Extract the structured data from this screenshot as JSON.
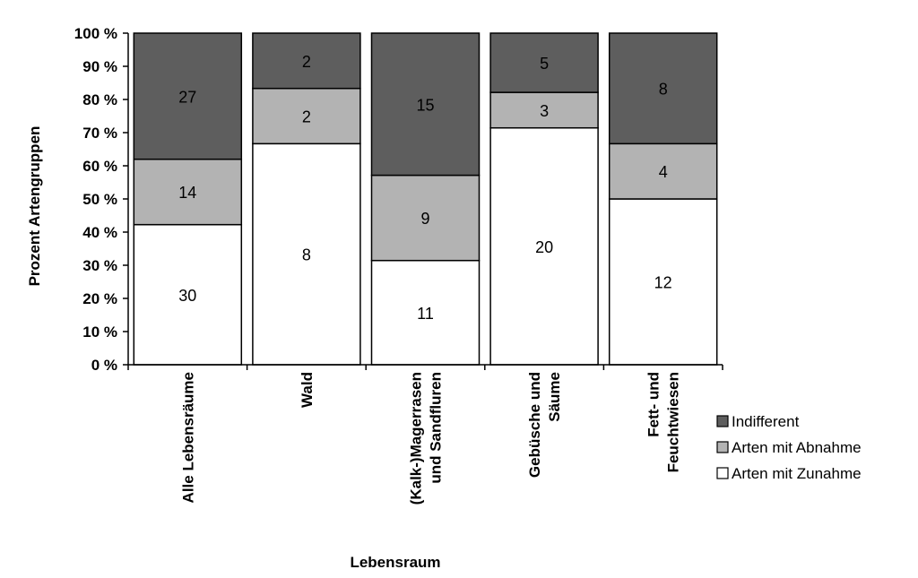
{
  "chart_data": {
    "type": "bar",
    "stacked": "percent",
    "xlabel": "Lebensraum",
    "ylabel": "Prozent Artengruppen",
    "ylim": [
      0,
      100
    ],
    "yticks": [
      "0 %",
      "10 %",
      "20 %",
      "30 %",
      "40 %",
      "50 %",
      "60 %",
      "70 %",
      "80 %",
      "90 %",
      "100 %"
    ],
    "categories": [
      [
        "Alle Lebensräume"
      ],
      [
        "Wald"
      ],
      [
        "(Kalk-)Magerrasen",
        "und Sandfluren"
      ],
      [
        "Gebüsche und",
        "Säume"
      ],
      [
        "Fett- und",
        "Feuchtwiesen"
      ]
    ],
    "series": [
      {
        "name": "Arten mit Zunahme",
        "values": [
          30,
          8,
          11,
          20,
          12
        ],
        "color": "#ffffff"
      },
      {
        "name": "Arten mit Abnahme",
        "values": [
          14,
          2,
          9,
          3,
          4
        ],
        "color": "#b3b3b3"
      },
      {
        "name": "Indifferent",
        "values": [
          27,
          2,
          15,
          5,
          8
        ],
        "color": "#5e5e5e"
      }
    ],
    "legend_order": [
      "Indifferent",
      "Arten mit Abnahme",
      "Arten mit Zunahme"
    ],
    "legend_position": "right",
    "grid": false
  }
}
